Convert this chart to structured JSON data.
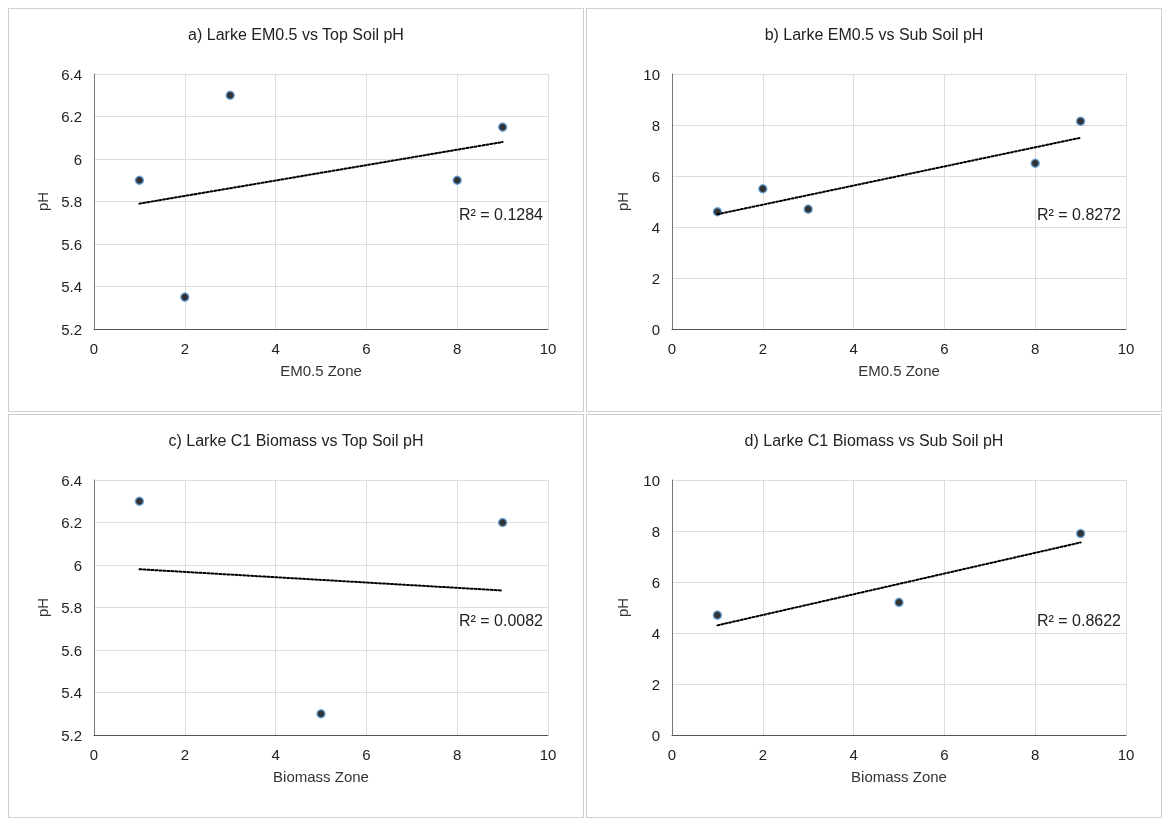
{
  "chart_data": [
    {
      "type": "scatter",
      "title": "a) Larke EM0.5 vs Top Soil pH",
      "xlabel": "EM0.5 Zone",
      "ylabel": "pH",
      "xlim": [
        0,
        10
      ],
      "xticks": [
        0,
        2,
        4,
        6,
        8,
        10
      ],
      "ylim": [
        5.2,
        6.4
      ],
      "yticks": [
        5.2,
        5.4,
        5.6,
        5.8,
        6,
        6.2,
        6.4
      ],
      "grid": true,
      "marker": "circle",
      "annotations": [
        "R² = 0.1284"
      ],
      "series": [
        {
          "type": "scatter",
          "color": "#000000",
          "x": [
            1,
            2,
            3,
            8,
            9
          ],
          "values": [
            5.9,
            5.35,
            6.3,
            5.9,
            6.15
          ]
        },
        {
          "type": "line",
          "color": "#000000",
          "line_style": "dotted",
          "marker": "none",
          "x": [
            1,
            9
          ],
          "values": [
            5.79,
            6.08
          ]
        }
      ]
    },
    {
      "type": "scatter",
      "title": "b) Larke EM0.5 vs Sub Soil pH",
      "xlabel": "EM0.5 Zone",
      "ylabel": "pH",
      "xlim": [
        0,
        10
      ],
      "xticks": [
        0,
        2,
        4,
        6,
        8,
        10
      ],
      "ylim": [
        0,
        10
      ],
      "yticks": [
        0,
        2,
        4,
        6,
        8,
        10
      ],
      "grid": true,
      "marker": "circle",
      "annotations": [
        "R² = 0.8272"
      ],
      "series": [
        {
          "type": "scatter",
          "color": "#000000",
          "x": [
            1,
            2,
            3,
            8,
            9
          ],
          "values": [
            4.6,
            5.5,
            4.7,
            6.5,
            8.15
          ]
        },
        {
          "type": "line",
          "color": "#000000",
          "line_style": "dotted",
          "marker": "none",
          "x": [
            1,
            9
          ],
          "values": [
            4.5,
            7.5
          ]
        }
      ]
    },
    {
      "type": "scatter",
      "title": "c) Larke C1 Biomass vs Top Soil pH",
      "xlabel": "Biomass Zone",
      "ylabel": "pH",
      "xlim": [
        0,
        10
      ],
      "xticks": [
        0,
        2,
        4,
        6,
        8,
        10
      ],
      "ylim": [
        5.2,
        6.4
      ],
      "yticks": [
        5.2,
        5.4,
        5.6,
        5.8,
        6,
        6.2,
        6.4
      ],
      "grid": true,
      "marker": "circle",
      "annotations": [
        "R² = 0.0082"
      ],
      "series": [
        {
          "type": "scatter",
          "color": "#000000",
          "x": [
            1,
            5,
            9
          ],
          "values": [
            6.3,
            5.3,
            6.2
          ]
        },
        {
          "type": "line",
          "color": "#000000",
          "line_style": "dotted",
          "marker": "none",
          "x": [
            1,
            9
          ],
          "values": [
            5.98,
            5.88
          ]
        }
      ]
    },
    {
      "type": "scatter",
      "title": "d) Larke C1 Biomass vs Sub Soil pH",
      "xlabel": "Biomass Zone",
      "ylabel": "pH",
      "xlim": [
        0,
        10
      ],
      "xticks": [
        0,
        2,
        4,
        6,
        8,
        10
      ],
      "ylim": [
        0,
        10
      ],
      "yticks": [
        0,
        2,
        4,
        6,
        8,
        10
      ],
      "grid": true,
      "marker": "circle",
      "annotations": [
        "R² = 0.8622"
      ],
      "series": [
        {
          "type": "scatter",
          "color": "#000000",
          "x": [
            1,
            5,
            9
          ],
          "values": [
            4.7,
            5.2,
            7.9
          ]
        },
        {
          "type": "line",
          "color": "#000000",
          "line_style": "dotted",
          "marker": "none",
          "x": [
            1,
            9
          ],
          "values": [
            4.3,
            7.55
          ]
        }
      ]
    }
  ]
}
